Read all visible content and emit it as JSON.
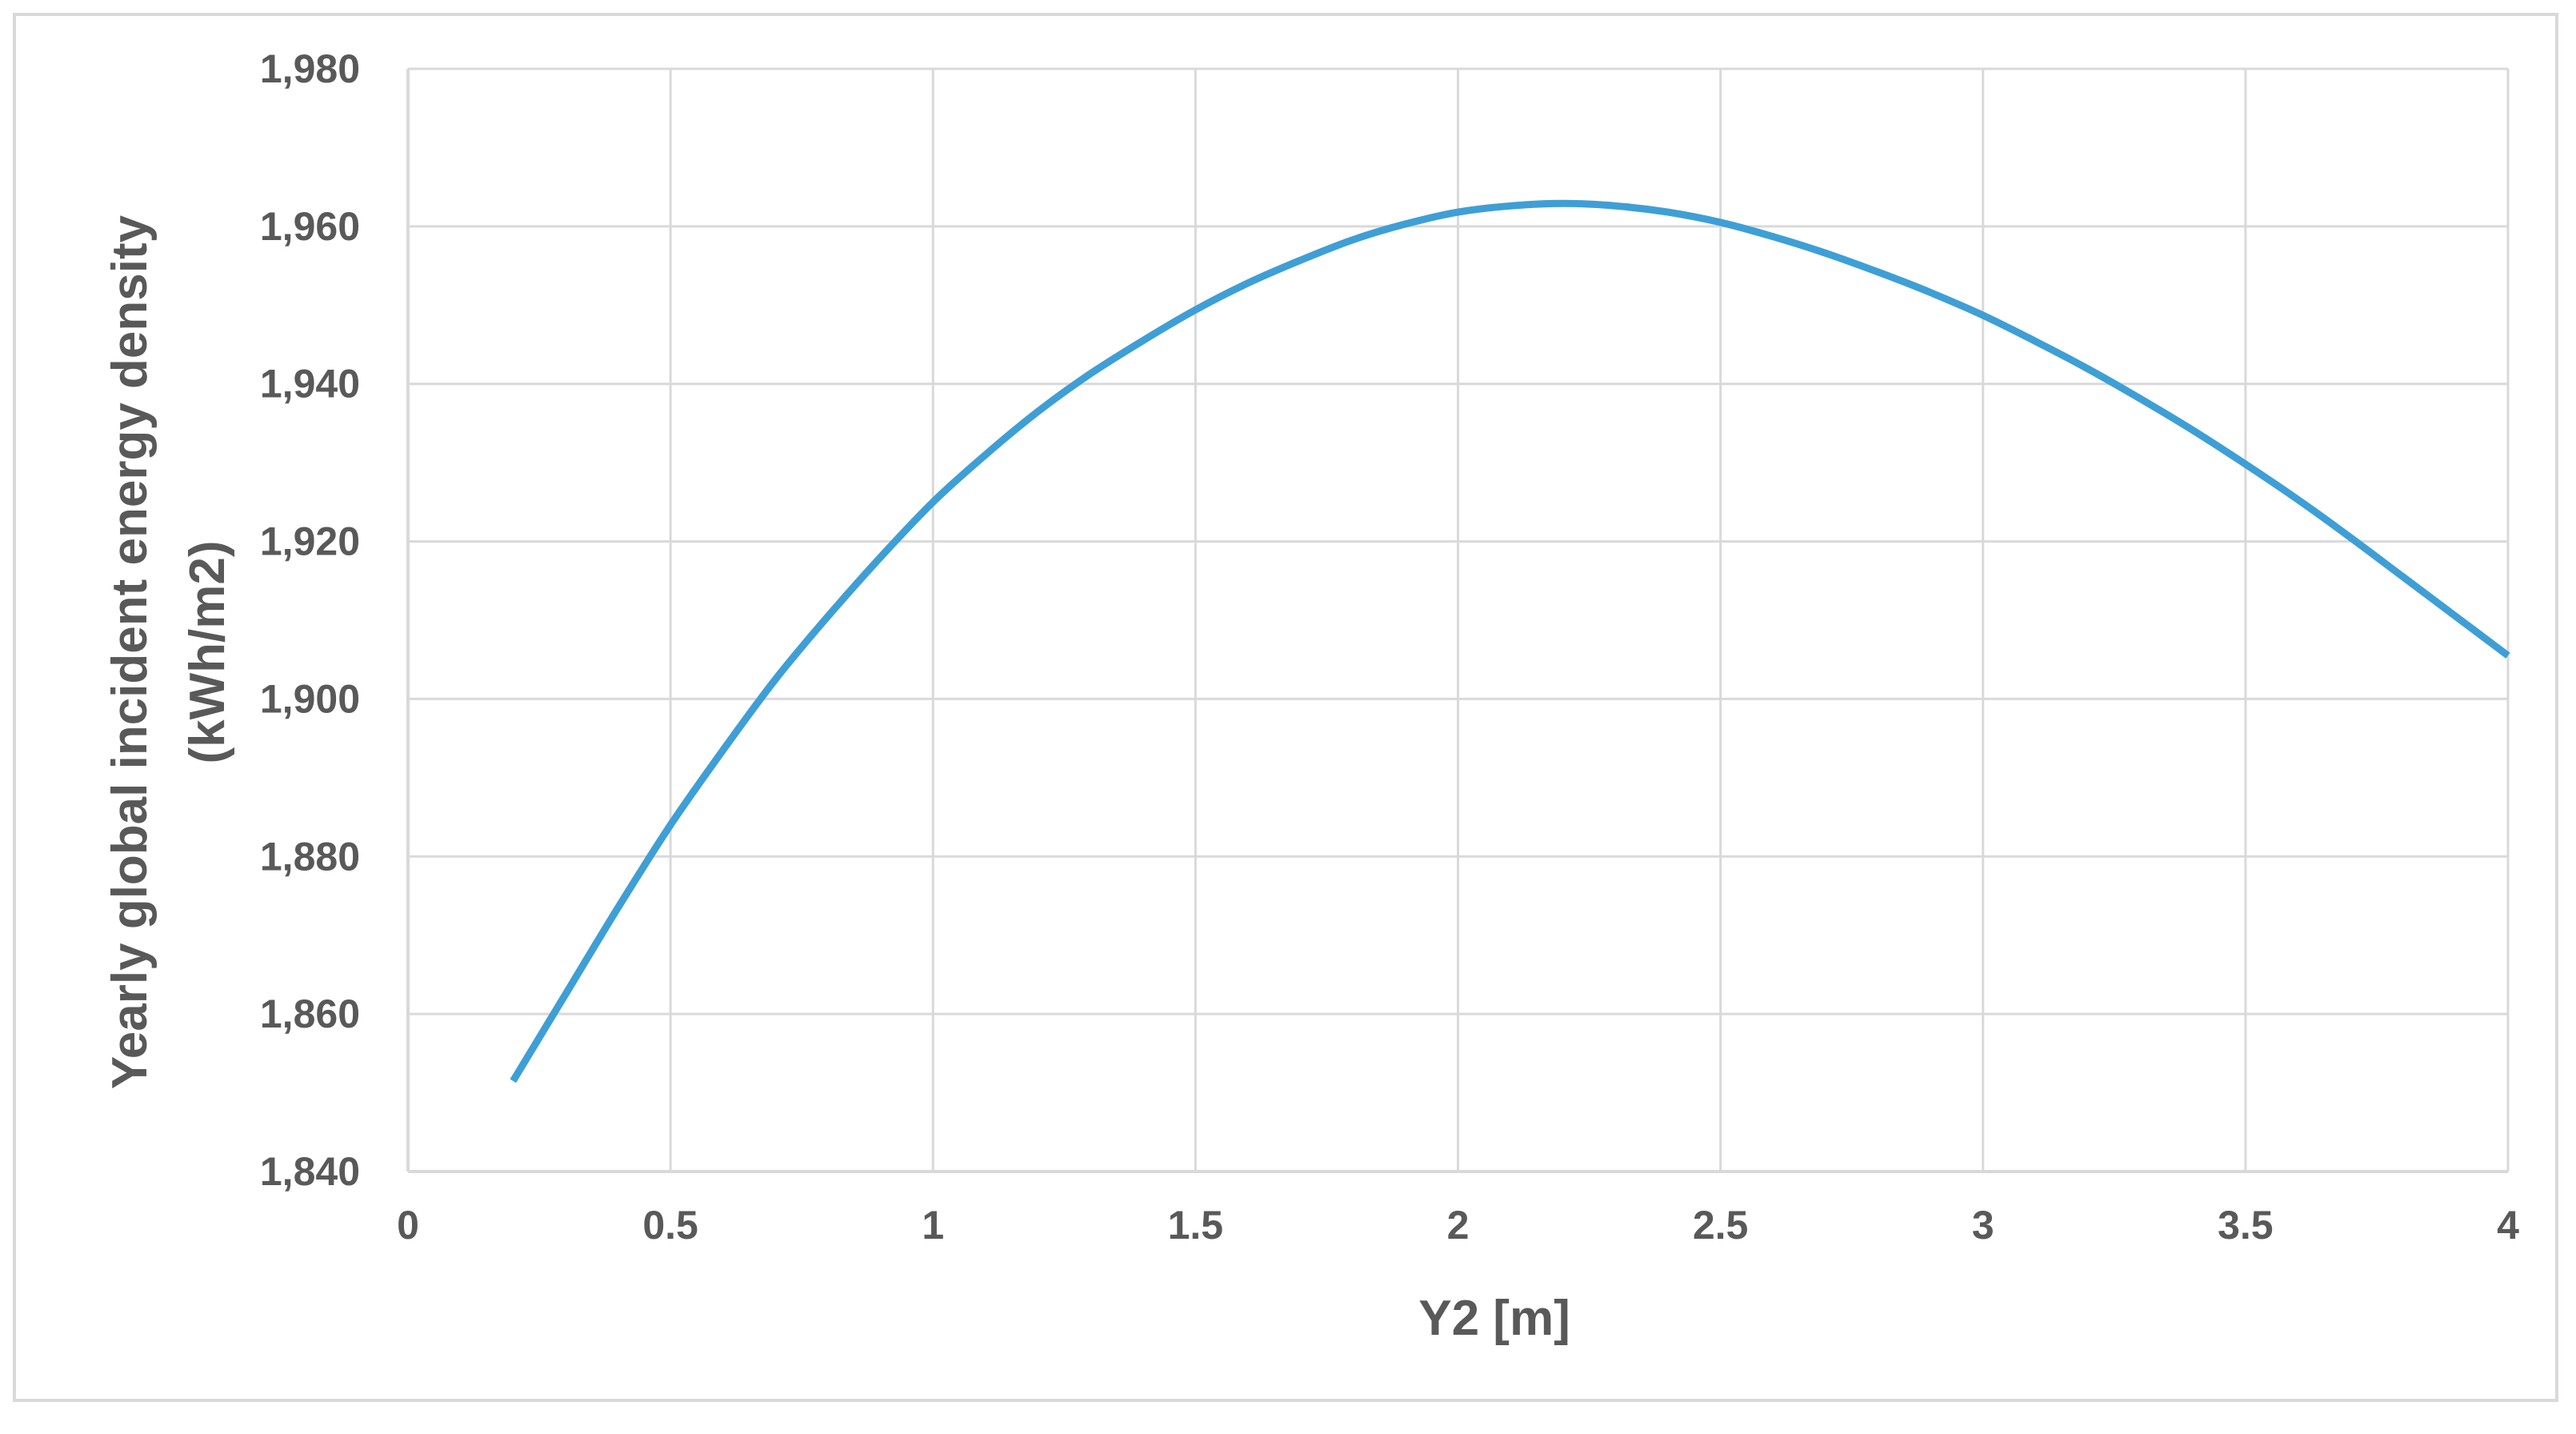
{
  "chart_data": {
    "type": "line",
    "title": "",
    "xlabel": "Y2 [m]",
    "ylabel_lines": [
      "Yearly global incident energy density",
      "(kWh/m2)"
    ],
    "xlim": [
      0,
      4
    ],
    "ylim": [
      1840,
      1980
    ],
    "x_ticks": [
      0,
      0.5,
      1,
      1.5,
      2,
      2.5,
      3,
      3.5,
      4
    ],
    "x_tick_labels": [
      "0",
      "0.5",
      "1",
      "1.5",
      "2",
      "2.5",
      "3",
      "3.5",
      "4"
    ],
    "y_ticks": [
      1840,
      1860,
      1880,
      1900,
      1920,
      1940,
      1960,
      1980
    ],
    "y_tick_labels": [
      "1,840",
      "1,860",
      "1,880",
      "1,900",
      "1,920",
      "1,940",
      "1,960",
      "1,980"
    ],
    "grid": true,
    "legend": "none",
    "series": [
      {
        "color": "#3e9fd6",
        "x": [
          0.2,
          0.3,
          0.4,
          0.5,
          0.6,
          0.7,
          0.8,
          0.9,
          1.0,
          1.1,
          1.2,
          1.3,
          1.4,
          1.5,
          1.6,
          1.7,
          1.8,
          1.9,
          2.0,
          2.1,
          2.2,
          2.3,
          2.4,
          2.5,
          2.6,
          2.7,
          2.8,
          2.9,
          3.0,
          3.1,
          3.2,
          3.3,
          3.4,
          3.5,
          3.6,
          3.7,
          3.8,
          3.9,
          4.0
        ],
        "y": [
          1851.5,
          1862.5,
          1873.5,
          1884.0,
          1893.5,
          1902.5,
          1910.5,
          1918.0,
          1925.0,
          1931.0,
          1936.5,
          1941.3,
          1945.5,
          1949.4,
          1952.8,
          1955.7,
          1958.3,
          1960.3,
          1961.8,
          1962.6,
          1962.9,
          1962.6,
          1961.8,
          1960.5,
          1958.7,
          1956.6,
          1954.2,
          1951.6,
          1948.7,
          1945.4,
          1941.9,
          1938.1,
          1934.1,
          1929.8,
          1925.3,
          1920.5,
          1915.5,
          1910.5,
          1905.5
        ]
      }
    ]
  },
  "colors": {
    "background": "#ffffff",
    "frame_border": "#d9d9d9",
    "gridline": "#d9d9d9",
    "text": "#595959",
    "series": "#3e9fd6"
  }
}
